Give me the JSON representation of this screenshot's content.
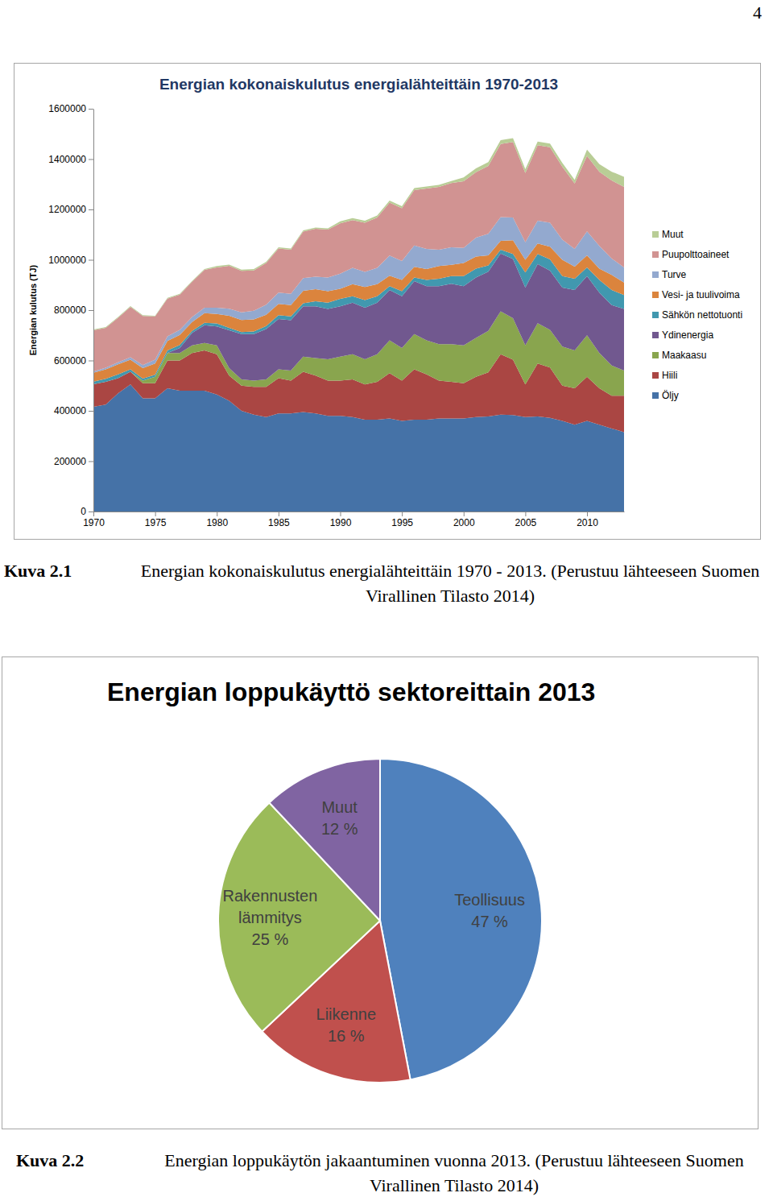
{
  "page_number": "4",
  "chart_data": [
    {
      "type": "area",
      "stacked": true,
      "title": "Energian kokonaiskulutus energialähteittäin 1970-2013",
      "y_label": "Energian kulutus (TJ)",
      "x": [
        1970,
        1971,
        1972,
        1973,
        1974,
        1975,
        1976,
        1977,
        1978,
        1979,
        1980,
        1981,
        1982,
        1983,
        1984,
        1985,
        1986,
        1987,
        1988,
        1989,
        1990,
        1991,
        1992,
        1993,
        1994,
        1995,
        1996,
        1997,
        1998,
        1999,
        2000,
        2001,
        2002,
        2003,
        2004,
        2005,
        2006,
        2007,
        2008,
        2009,
        2010,
        2011,
        2012,
        2013
      ],
      "xlim": [
        1970,
        2013
      ],
      "xticks": [
        1970,
        1975,
        1980,
        1985,
        1990,
        1995,
        2000,
        2005,
        2010
      ],
      "ylim": [
        0,
        1600000
      ],
      "yticks": [
        0,
        200000,
        400000,
        600000,
        800000,
        1000000,
        1200000,
        1400000,
        1600000
      ],
      "grid": false,
      "legend": "right",
      "series": [
        {
          "name": "Öljy",
          "color": "#4572a7",
          "values": [
            416000,
            425000,
            470000,
            505000,
            450000,
            450000,
            490000,
            480000,
            480000,
            480000,
            465000,
            440000,
            400000,
            385000,
            375000,
            390000,
            390000,
            395000,
            390000,
            380000,
            380000,
            375000,
            365000,
            365000,
            370000,
            360000,
            365000,
            365000,
            370000,
            370000,
            370000,
            375000,
            378000,
            385000,
            383000,
            375000,
            378000,
            372000,
            360000,
            345000,
            360000,
            345000,
            330000,
            315000
          ]
        },
        {
          "name": "Hiili",
          "color": "#aa4643",
          "values": [
            90000,
            90000,
            60000,
            50000,
            60000,
            60000,
            110000,
            120000,
            150000,
            160000,
            160000,
            100000,
            100000,
            110000,
            120000,
            140000,
            130000,
            160000,
            150000,
            140000,
            140000,
            150000,
            140000,
            150000,
            180000,
            160000,
            200000,
            180000,
            150000,
            145000,
            140000,
            160000,
            175000,
            240000,
            220000,
            130000,
            210000,
            200000,
            140000,
            145000,
            175000,
            145000,
            130000,
            145000
          ]
        },
        {
          "name": "Maakaasu",
          "color": "#89a54e",
          "values": [
            0,
            0,
            0,
            0,
            10000,
            25000,
            30000,
            30000,
            30000,
            30000,
            35000,
            30000,
            25000,
            25000,
            30000,
            35000,
            40000,
            60000,
            70000,
            85000,
            95000,
            100000,
            100000,
            110000,
            130000,
            130000,
            140000,
            135000,
            145000,
            150000,
            150000,
            155000,
            165000,
            170000,
            165000,
            155000,
            160000,
            150000,
            155000,
            150000,
            165000,
            140000,
            120000,
            100000
          ]
        },
        {
          "name": "Ydinenergia",
          "color": "#71588f",
          "values": [
            0,
            0,
            0,
            0,
            0,
            0,
            0,
            20000,
            50000,
            70000,
            75000,
            150000,
            180000,
            185000,
            200000,
            200000,
            200000,
            200000,
            205000,
            200000,
            200000,
            205000,
            205000,
            205000,
            200000,
            205000,
            210000,
            215000,
            230000,
            240000,
            235000,
            240000,
            235000,
            230000,
            235000,
            230000,
            235000,
            235000,
            235000,
            240000,
            235000,
            240000,
            240000,
            245000
          ]
        },
        {
          "name": "Sähkön nettotuonti",
          "color": "#4198af",
          "values": [
            10000,
            12000,
            15000,
            10000,
            8000,
            8000,
            10000,
            12000,
            8000,
            10000,
            12000,
            10000,
            8000,
            10000,
            12000,
            15000,
            15000,
            12000,
            20000,
            25000,
            30000,
            25000,
            30000,
            25000,
            15000,
            20000,
            15000,
            25000,
            30000,
            30000,
            40000,
            35000,
            25000,
            15000,
            20000,
            60000,
            40000,
            45000,
            45000,
            45000,
            35000,
            50000,
            60000,
            55000
          ]
        },
        {
          "name": "Vesi- ja tuulivoima",
          "color": "#db843d",
          "values": [
            35000,
            38000,
            40000,
            38000,
            42000,
            45000,
            38000,
            40000,
            35000,
            38000,
            38000,
            48000,
            48000,
            48000,
            45000,
            45000,
            45000,
            50000,
            48000,
            45000,
            40000,
            48000,
            52000,
            48000,
            42000,
            45000,
            42000,
            43000,
            50000,
            45000,
            52000,
            48000,
            40000,
            35000,
            55000,
            50000,
            42000,
            50000,
            65000,
            48000,
            48000,
            45000,
            60000,
            50000
          ]
        },
        {
          "name": "Turve",
          "color": "#93a9cf",
          "values": [
            5000,
            6000,
            8000,
            10000,
            12000,
            15000,
            18000,
            20000,
            20000,
            22000,
            25000,
            28000,
            30000,
            35000,
            40000,
            45000,
            45000,
            50000,
            50000,
            55000,
            60000,
            65000,
            60000,
            65000,
            80000,
            75000,
            85000,
            80000,
            65000,
            70000,
            60000,
            75000,
            85000,
            95000,
            90000,
            70000,
            90000,
            95000,
            80000,
            70000,
            95000,
            90000,
            65000,
            60000
          ]
        },
        {
          "name": "Puupolttoaineet",
          "color": "#d19392",
          "values": [
            164000,
            159000,
            177000,
            200000,
            195000,
            172000,
            150000,
            140000,
            140000,
            150000,
            160000,
            170000,
            165000,
            160000,
            165000,
            175000,
            175000,
            185000,
            190000,
            190000,
            200000,
            190000,
            195000,
            200000,
            210000,
            210000,
            220000,
            240000,
            250000,
            255000,
            265000,
            260000,
            270000,
            290000,
            300000,
            275000,
            300000,
            300000,
            290000,
            260000,
            300000,
            295000,
            310000,
            320000
          ]
        },
        {
          "name": "Muut",
          "color": "#b9cd96",
          "values": [
            3000,
            3000,
            3000,
            3000,
            3000,
            3000,
            3000,
            3000,
            3000,
            3000,
            5000,
            5000,
            5000,
            5000,
            5000,
            5000,
            5000,
            5000,
            5000,
            5000,
            8000,
            8000,
            8000,
            8000,
            8000,
            8000,
            8000,
            8000,
            8000,
            8000,
            15000,
            15000,
            15000,
            15000,
            15000,
            15000,
            15000,
            15000,
            15000,
            15000,
            25000,
            30000,
            35000,
            40000
          ]
        }
      ]
    },
    {
      "type": "pie",
      "title": "Energian loppukäyttö sektoreittain 2013",
      "categories": [
        "Teollisuus",
        "Liikenne",
        "Rakennusten lämmitys",
        "Muut"
      ],
      "values": [
        47,
        16,
        25,
        12
      ],
      "value_labels": [
        "47 %",
        "16 %",
        "25 %",
        "12 %"
      ],
      "colors": [
        "#4f81bd",
        "#c0504d",
        "#9bbb59",
        "#8064a2"
      ],
      "data_labels": true
    }
  ],
  "captions": [
    {
      "label": "Kuva 2.1",
      "text": "Energian kokonaiskulutus energialähteittäin 1970 - 2013. (Perustuu lähteeseen Suomen Virallinen Tilasto 2014)"
    },
    {
      "label": "Kuva 2.2",
      "text": "Energian loppukäytön jakaantuminen vuonna 2013. (Perustuu lähteeseen Suomen Virallinen Tilasto 2014)"
    }
  ]
}
